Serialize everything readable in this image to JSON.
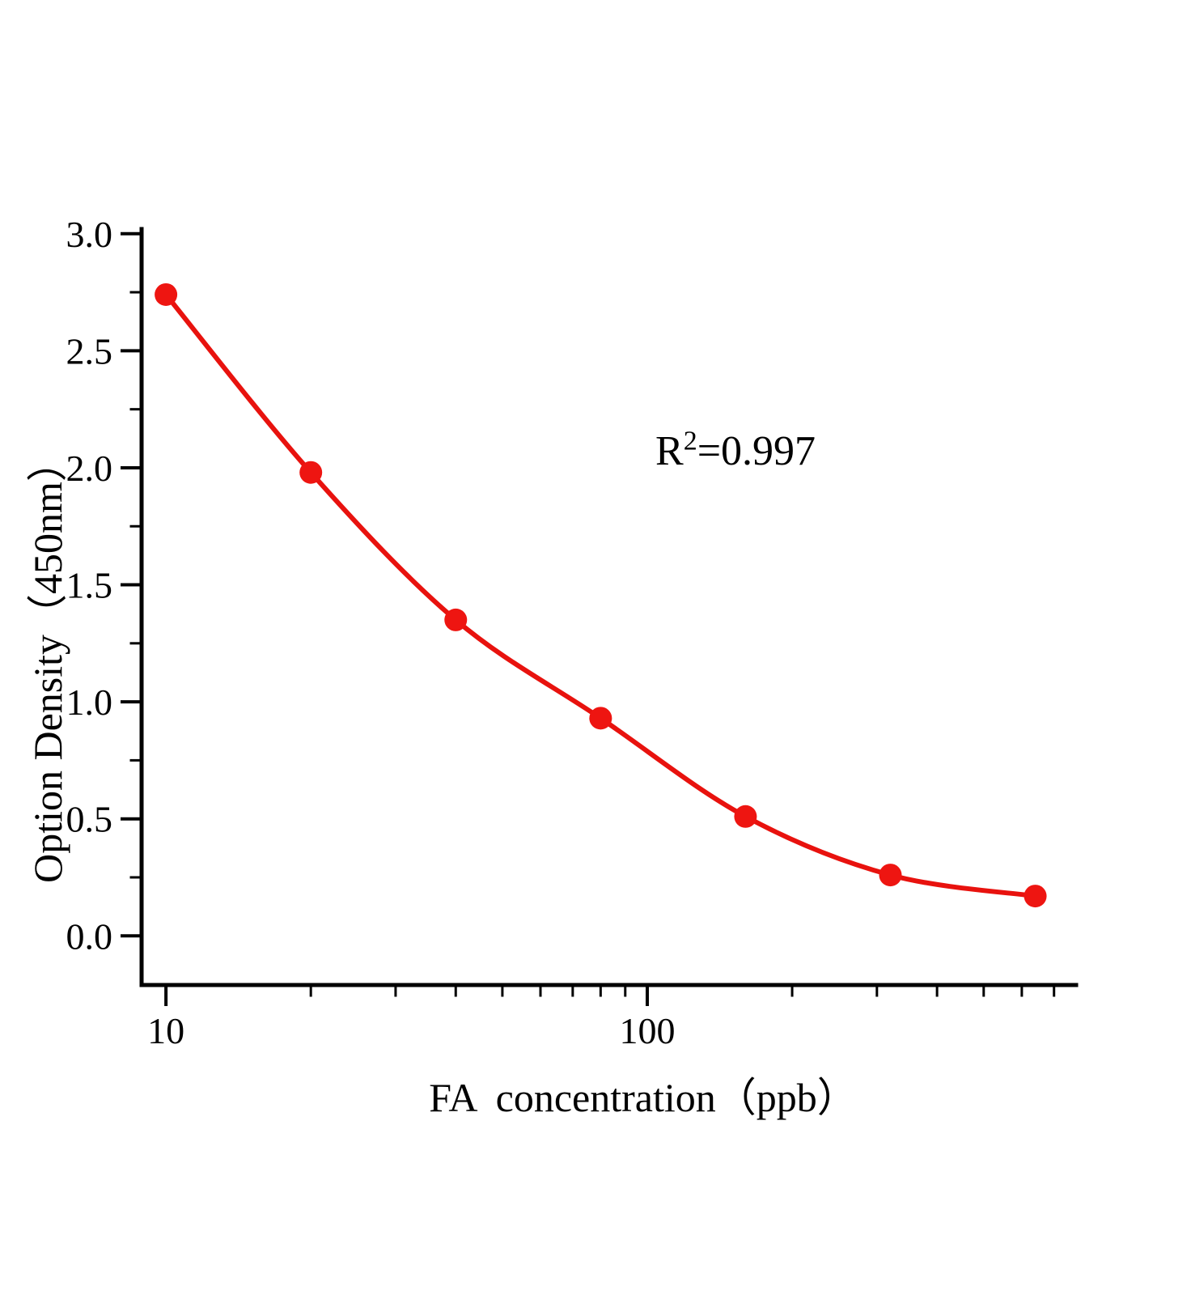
{
  "chart_data": {
    "type": "scatter",
    "title": "",
    "xlabel": "FA  concentration（ppb）",
    "ylabel": "Option Density（450nm）",
    "x_scale": "log",
    "x": [
      10,
      20,
      40,
      80,
      160,
      320,
      640
    ],
    "y": [
      2.74,
      1.98,
      1.35,
      0.93,
      0.51,
      0.26,
      0.17
    ],
    "fit_curve": "smooth decay through points",
    "xlim": [
      8.9,
      778
    ],
    "ylim": [
      -0.21,
      3.02
    ],
    "x_major_ticks": [
      10,
      100
    ],
    "x_tick_labels": [
      "10",
      "100"
    ],
    "x_minor_ticks": [
      20,
      30,
      40,
      50,
      60,
      70,
      80,
      90,
      200,
      300,
      400,
      500,
      600,
      700
    ],
    "y_major_ticks": [
      0.0,
      0.5,
      1.0,
      1.5,
      2.0,
      2.5,
      3.0
    ],
    "y_tick_labels": [
      "0.0",
      "0.5",
      "1.0",
      "1.5",
      "2.0",
      "2.5",
      "3.0"
    ],
    "y_minor_ticks": [
      0.25,
      0.75,
      1.25,
      1.75,
      2.25,
      2.75
    ],
    "grid": false,
    "legend": "none",
    "point_color": "#ee1511",
    "line_color": "#e8120e",
    "axis_color": "#000000"
  },
  "annotation": {
    "base": "R",
    "sup": "2",
    "rest": "=0.997"
  }
}
